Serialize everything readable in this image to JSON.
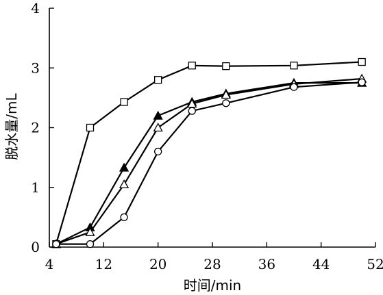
{
  "chart_data": {
    "type": "line",
    "xlabel": "时间/min",
    "ylabel": "脱水量/mL",
    "xlim": [
      4,
      52
    ],
    "ylim": [
      0,
      4
    ],
    "xticks": [
      4,
      12,
      20,
      28,
      36,
      44,
      52
    ],
    "yticks": [
      0,
      1,
      2,
      3,
      4
    ],
    "grid": false,
    "legend": "none",
    "series": [
      {
        "marker": "square-open",
        "points": [
          [
            5,
            0.05
          ],
          [
            10,
            2.0
          ],
          [
            15,
            2.43
          ],
          [
            20,
            2.8
          ],
          [
            25,
            3.04
          ],
          [
            30,
            3.03
          ],
          [
            40,
            3.04
          ],
          [
            50,
            3.1
          ]
        ]
      },
      {
        "marker": "triangle-filled",
        "points": [
          [
            5,
            0.05
          ],
          [
            10,
            0.33
          ],
          [
            15,
            1.33
          ],
          [
            20,
            2.2
          ],
          [
            25,
            2.43
          ],
          [
            30,
            2.57
          ],
          [
            40,
            2.75
          ],
          [
            50,
            2.75
          ]
        ]
      },
      {
        "marker": "triangle-open",
        "points": [
          [
            5,
            0.05
          ],
          [
            10,
            0.25
          ],
          [
            15,
            1.05
          ],
          [
            20,
            2.0
          ],
          [
            25,
            2.4
          ],
          [
            30,
            2.55
          ],
          [
            40,
            2.73
          ],
          [
            50,
            2.82
          ]
        ]
      },
      {
        "marker": "circle-open",
        "points": [
          [
            5,
            0.05
          ],
          [
            10,
            0.05
          ],
          [
            15,
            0.5
          ],
          [
            20,
            1.6
          ],
          [
            25,
            2.28
          ],
          [
            30,
            2.41
          ],
          [
            40,
            2.68
          ],
          [
            50,
            2.76
          ]
        ]
      }
    ]
  }
}
